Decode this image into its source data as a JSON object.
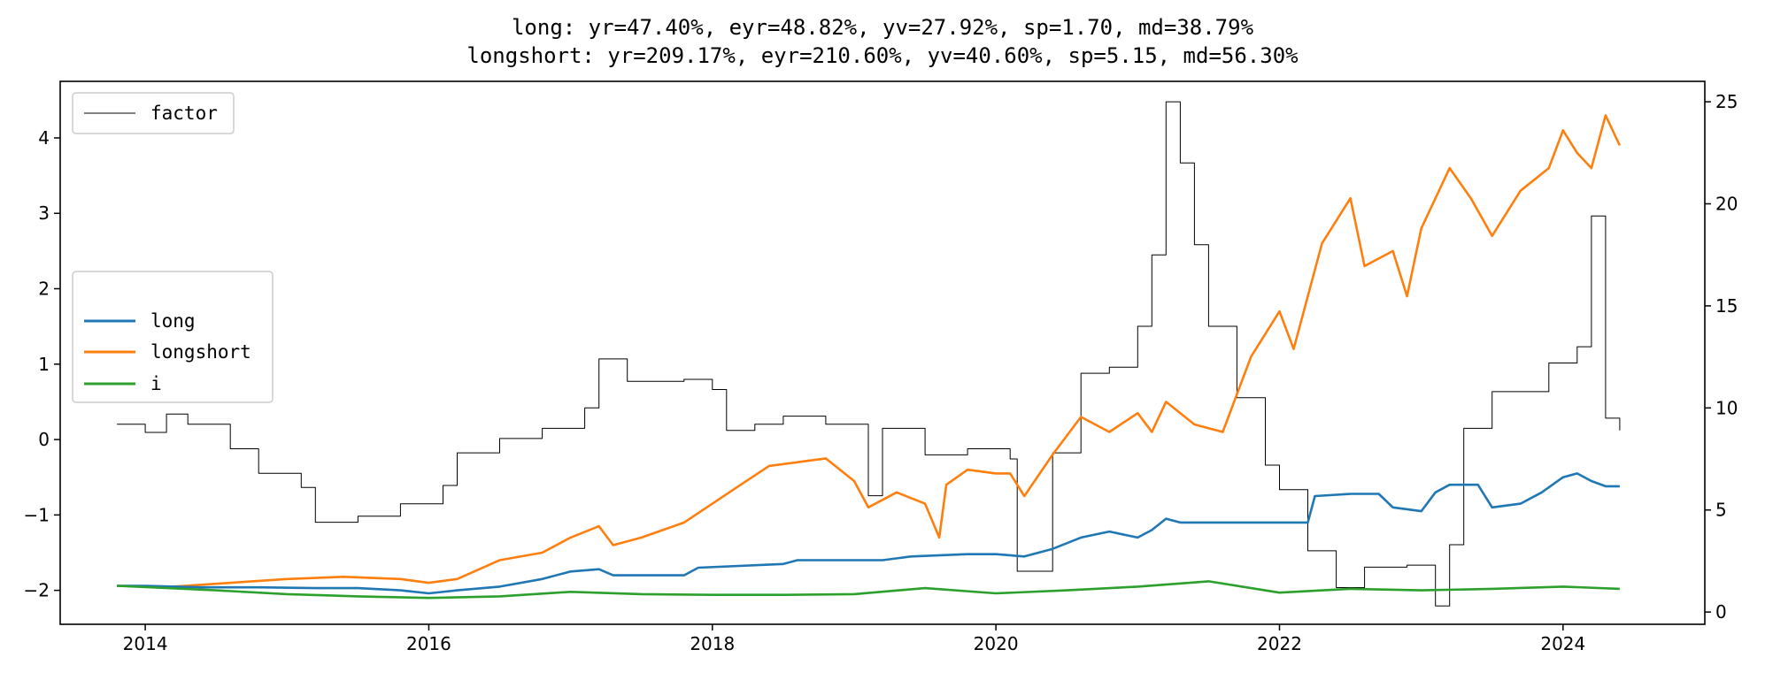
{
  "chart_data": {
    "type": "line",
    "title_lines": [
      "long: yr=47.40%, eyr=48.82%, yv=27.92%, sp=1.70, md=38.79%",
      "longshort: yr=209.17%, eyr=210.60%, yv=40.60%, sp=5.15, md=56.30%"
    ],
    "xlabel": "",
    "ylabel": "",
    "xlim": [
      2013.4,
      2025.0
    ],
    "ylim_left": [
      -2.45,
      4.75
    ],
    "ylim_right": [
      -0.6,
      26.0
    ],
    "x_ticks": [
      2014,
      2016,
      2018,
      2020,
      2022,
      2024
    ],
    "x_tick_labels": [
      "2014",
      "2016",
      "2018",
      "2020",
      "2022",
      "2024"
    ],
    "y_left_ticks": [
      -2,
      -1,
      0,
      1,
      2,
      3,
      4
    ],
    "y_left_tick_labels": [
      "−2",
      "−1",
      "0",
      "1",
      "2",
      "3",
      "4"
    ],
    "y_right_ticks": [
      0,
      5,
      10,
      15,
      20,
      25
    ],
    "y_right_tick_labels": [
      "0",
      "5",
      "10",
      "15",
      "20",
      "25"
    ],
    "grid": false,
    "legends": [
      {
        "placement": "upper-left",
        "entries": [
          "factor"
        ]
      },
      {
        "placement": "center-left",
        "entries": [
          "long",
          "longshort",
          "i"
        ]
      }
    ],
    "series": [
      {
        "name": "long",
        "axis": "left",
        "color": "#1f77b4",
        "points": [
          [
            2013.8,
            -1.94
          ],
          [
            2014.0,
            -1.94
          ],
          [
            2014.4,
            -1.96
          ],
          [
            2014.8,
            -1.96
          ],
          [
            2015.2,
            -1.97
          ],
          [
            2015.5,
            -1.97
          ],
          [
            2015.8,
            -2.0
          ],
          [
            2016.0,
            -2.04
          ],
          [
            2016.2,
            -2.0
          ],
          [
            2016.5,
            -1.95
          ],
          [
            2016.8,
            -1.85
          ],
          [
            2017.0,
            -1.75
          ],
          [
            2017.2,
            -1.72
          ],
          [
            2017.3,
            -1.8
          ],
          [
            2017.8,
            -1.8
          ],
          [
            2017.9,
            -1.7
          ],
          [
            2018.5,
            -1.65
          ],
          [
            2018.6,
            -1.6
          ],
          [
            2019.2,
            -1.6
          ],
          [
            2019.4,
            -1.55
          ],
          [
            2019.8,
            -1.52
          ],
          [
            2020.0,
            -1.52
          ],
          [
            2020.2,
            -1.55
          ],
          [
            2020.4,
            -1.45
          ],
          [
            2020.6,
            -1.3
          ],
          [
            2020.8,
            -1.22
          ],
          [
            2021.0,
            -1.3
          ],
          [
            2021.1,
            -1.2
          ],
          [
            2021.2,
            -1.05
          ],
          [
            2021.3,
            -1.1
          ],
          [
            2022.2,
            -1.1
          ],
          [
            2022.25,
            -0.75
          ],
          [
            2022.5,
            -0.72
          ],
          [
            2022.7,
            -0.72
          ],
          [
            2022.8,
            -0.9
          ],
          [
            2023.0,
            -0.95
          ],
          [
            2023.1,
            -0.7
          ],
          [
            2023.2,
            -0.6
          ],
          [
            2023.4,
            -0.6
          ],
          [
            2023.5,
            -0.9
          ],
          [
            2023.7,
            -0.85
          ],
          [
            2023.85,
            -0.7
          ],
          [
            2024.0,
            -0.5
          ],
          [
            2024.1,
            -0.45
          ],
          [
            2024.2,
            -0.55
          ],
          [
            2024.3,
            -0.62
          ],
          [
            2024.4,
            -0.62
          ]
        ]
      },
      {
        "name": "longshort",
        "axis": "left",
        "color": "#ff7f0e",
        "points": [
          [
            2013.8,
            -1.94
          ],
          [
            2014.2,
            -1.95
          ],
          [
            2014.6,
            -1.9
          ],
          [
            2015.0,
            -1.85
          ],
          [
            2015.4,
            -1.82
          ],
          [
            2015.8,
            -1.85
          ],
          [
            2016.0,
            -1.9
          ],
          [
            2016.2,
            -1.85
          ],
          [
            2016.5,
            -1.6
          ],
          [
            2016.8,
            -1.5
          ],
          [
            2017.0,
            -1.3
          ],
          [
            2017.2,
            -1.15
          ],
          [
            2017.3,
            -1.4
          ],
          [
            2017.5,
            -1.3
          ],
          [
            2017.8,
            -1.1
          ],
          [
            2018.0,
            -0.85
          ],
          [
            2018.2,
            -0.6
          ],
          [
            2018.4,
            -0.35
          ],
          [
            2018.6,
            -0.3
          ],
          [
            2018.8,
            -0.25
          ],
          [
            2019.0,
            -0.55
          ],
          [
            2019.1,
            -0.9
          ],
          [
            2019.3,
            -0.7
          ],
          [
            2019.5,
            -0.85
          ],
          [
            2019.6,
            -1.3
          ],
          [
            2019.65,
            -0.6
          ],
          [
            2019.8,
            -0.4
          ],
          [
            2020.0,
            -0.45
          ],
          [
            2020.1,
            -0.45
          ],
          [
            2020.2,
            -0.75
          ],
          [
            2020.4,
            -0.2
          ],
          [
            2020.6,
            0.3
          ],
          [
            2020.8,
            0.1
          ],
          [
            2021.0,
            0.35
          ],
          [
            2021.1,
            0.1
          ],
          [
            2021.2,
            0.5
          ],
          [
            2021.4,
            0.2
          ],
          [
            2021.6,
            0.1
          ],
          [
            2021.8,
            1.1
          ],
          [
            2022.0,
            1.7
          ],
          [
            2022.1,
            1.2
          ],
          [
            2022.3,
            2.6
          ],
          [
            2022.5,
            3.2
          ],
          [
            2022.6,
            2.3
          ],
          [
            2022.8,
            2.5
          ],
          [
            2022.9,
            1.9
          ],
          [
            2023.0,
            2.8
          ],
          [
            2023.2,
            3.6
          ],
          [
            2023.35,
            3.2
          ],
          [
            2023.5,
            2.7
          ],
          [
            2023.7,
            3.3
          ],
          [
            2023.9,
            3.6
          ],
          [
            2024.0,
            4.1
          ],
          [
            2024.1,
            3.8
          ],
          [
            2024.2,
            3.6
          ],
          [
            2024.3,
            4.3
          ],
          [
            2024.4,
            3.9
          ]
        ]
      },
      {
        "name": "i",
        "axis": "left",
        "color": "#2ca02c",
        "points": [
          [
            2013.8,
            -1.94
          ],
          [
            2014.5,
            -2.0
          ],
          [
            2015.0,
            -2.05
          ],
          [
            2015.5,
            -2.08
          ],
          [
            2016.0,
            -2.1
          ],
          [
            2016.5,
            -2.08
          ],
          [
            2017.0,
            -2.02
          ],
          [
            2017.5,
            -2.05
          ],
          [
            2018.0,
            -2.06
          ],
          [
            2018.5,
            -2.06
          ],
          [
            2019.0,
            -2.05
          ],
          [
            2019.5,
            -1.97
          ],
          [
            2020.0,
            -2.04
          ],
          [
            2020.5,
            -2.0
          ],
          [
            2021.0,
            -1.95
          ],
          [
            2021.5,
            -1.88
          ],
          [
            2022.0,
            -2.03
          ],
          [
            2022.5,
            -1.98
          ],
          [
            2023.0,
            -2.0
          ],
          [
            2023.5,
            -1.98
          ],
          [
            2024.0,
            -1.95
          ],
          [
            2024.4,
            -1.98
          ]
        ]
      },
      {
        "name": "factor",
        "axis": "right",
        "color": "#000000",
        "step": true,
        "points": [
          [
            2013.8,
            9.2
          ],
          [
            2014.0,
            8.8
          ],
          [
            2014.15,
            9.7
          ],
          [
            2014.3,
            9.2
          ],
          [
            2014.6,
            8.0
          ],
          [
            2014.8,
            6.8
          ],
          [
            2015.1,
            6.1
          ],
          [
            2015.2,
            4.4
          ],
          [
            2015.5,
            4.7
          ],
          [
            2015.8,
            5.3
          ],
          [
            2016.1,
            6.2
          ],
          [
            2016.2,
            7.8
          ],
          [
            2016.5,
            8.5
          ],
          [
            2016.8,
            9.0
          ],
          [
            2017.1,
            10.0
          ],
          [
            2017.2,
            12.4
          ],
          [
            2017.4,
            11.3
          ],
          [
            2017.8,
            11.4
          ],
          [
            2018.0,
            10.9
          ],
          [
            2018.1,
            8.9
          ],
          [
            2018.3,
            9.2
          ],
          [
            2018.5,
            9.6
          ],
          [
            2018.8,
            9.2
          ],
          [
            2019.1,
            5.7
          ],
          [
            2019.2,
            9.0
          ],
          [
            2019.5,
            7.7
          ],
          [
            2019.8,
            8.0
          ],
          [
            2020.1,
            7.5
          ],
          [
            2020.15,
            2.0
          ],
          [
            2020.4,
            7.8
          ],
          [
            2020.6,
            11.7
          ],
          [
            2020.8,
            12.0
          ],
          [
            2021.0,
            14.0
          ],
          [
            2021.1,
            17.5
          ],
          [
            2021.2,
            25.0
          ],
          [
            2021.3,
            22.0
          ],
          [
            2021.4,
            18.0
          ],
          [
            2021.5,
            14.0
          ],
          [
            2021.7,
            10.5
          ],
          [
            2021.9,
            7.2
          ],
          [
            2022.0,
            6.0
          ],
          [
            2022.2,
            3.0
          ],
          [
            2022.4,
            1.2
          ],
          [
            2022.6,
            2.2
          ],
          [
            2022.9,
            2.3
          ],
          [
            2023.1,
            0.3
          ],
          [
            2023.2,
            3.3
          ],
          [
            2023.3,
            9.0
          ],
          [
            2023.5,
            10.8
          ],
          [
            2023.9,
            12.2
          ],
          [
            2024.1,
            13.0
          ],
          [
            2024.2,
            19.4
          ],
          [
            2024.3,
            9.5
          ],
          [
            2024.4,
            8.9
          ]
        ]
      }
    ]
  }
}
